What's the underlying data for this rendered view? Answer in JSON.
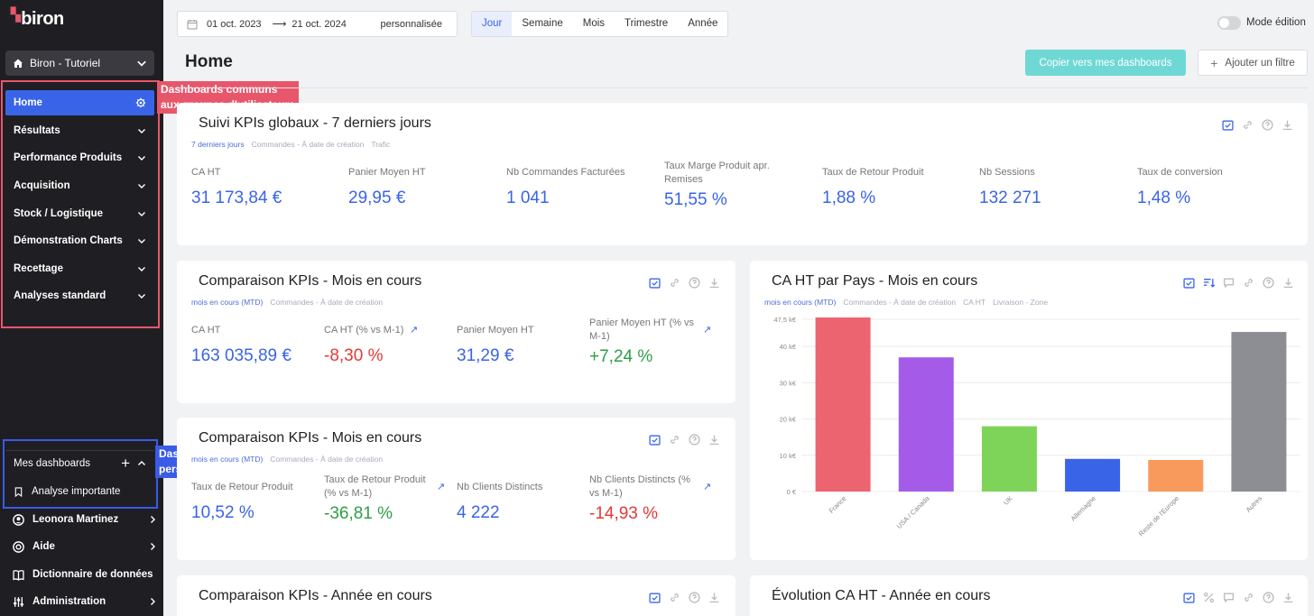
{
  "sidebar": {
    "logo": "biron",
    "workspace": "Biron - Tutoriel",
    "items": [
      {
        "label": "Home",
        "active": true
      },
      {
        "label": "Résultats"
      },
      {
        "label": "Performance Produits"
      },
      {
        "label": "Acquisition"
      },
      {
        "label": "Stock / Logistique"
      },
      {
        "label": "Démonstration Charts"
      },
      {
        "label": "Recettage"
      },
      {
        "label": "Analyses standard"
      }
    ],
    "my_dashboards": "Mes dashboards",
    "my_dashboard_items": [
      "Analyse importante"
    ],
    "bottom": [
      {
        "label": "Leonora Martinez",
        "icon": "user-icon"
      },
      {
        "label": "Aide",
        "icon": "help-icon"
      },
      {
        "label": "Dictionnaire de données",
        "icon": "book-icon"
      },
      {
        "label": "Administration",
        "icon": "sliders-icon"
      }
    ]
  },
  "annotations": {
    "common": [
      "Dashboards communs",
      "aux groupes d'utilisateurs"
    ],
    "personal": [
      "Dashboards",
      "personnels"
    ],
    "common_color": "#e8566b",
    "personal_color": "#3a5ae8"
  },
  "topbar": {
    "date_start": "01 oct. 2023",
    "date_end": "21 oct. 2024",
    "date_mode": "personnalisée",
    "granularities": [
      "Jour",
      "Semaine",
      "Mois",
      "Trimestre",
      "Année"
    ],
    "selected_granularity": "Jour",
    "edit_mode_label": "Mode édition",
    "edit_mode_on": false
  },
  "header": {
    "title": "Home",
    "copy_button": "Copier vers mes dashboards",
    "filter_button": "Ajouter un filtre"
  },
  "cards": {
    "weekly": {
      "title": "Suivi KPIs globaux - 7 derniers jours",
      "tags": [
        "7 derniers jours",
        "Commandes - À date de création",
        "Trafic"
      ],
      "kpis": [
        {
          "label": "CA HT",
          "value": "31 173,84 €"
        },
        {
          "label": "Panier Moyen HT",
          "value": "29,95 €"
        },
        {
          "label": "Nb Commandes Facturées",
          "value": "1 041"
        },
        {
          "label": "Taux Marge Produit apr. Remises",
          "value": "51,55 %"
        },
        {
          "label": "Taux de Retour Produit",
          "value": "1,88 %"
        },
        {
          "label": "Nb Sessions",
          "value": "132 271"
        },
        {
          "label": "Taux de conversion",
          "value": "1,48 %"
        }
      ]
    },
    "month1": {
      "title": "Comparaison KPIs - Mois en cours",
      "tags": [
        "mois en cours (MTD)",
        "Commandes - À date de création"
      ],
      "kpis": [
        {
          "label": "CA HT",
          "value": "163 035,89 €"
        },
        {
          "label": "CA HT (% vs M-1)",
          "value": "-8,30 %"
        },
        {
          "label": "Panier Moyen HT",
          "value": "31,29 €"
        },
        {
          "label": "Panier Moyen HT (% vs M-1)",
          "value": "+7,24 %"
        }
      ]
    },
    "month2": {
      "title": "Comparaison KPIs - Mois en cours",
      "tags": [
        "mois en cours (MTD)",
        "Commandes - À date de création"
      ],
      "kpis": [
        {
          "label": "Taux de Retour Produit",
          "value": "10,52 %"
        },
        {
          "label": "Taux de Retour Produit (% vs M-1)",
          "value": "-36,81 %"
        },
        {
          "label": "Nb Clients Distincts",
          "value": "4 222"
        },
        {
          "label": "Nb Clients Distincts (% vs M-1)",
          "value": "-14,93 %"
        }
      ]
    },
    "year": {
      "title": "Comparaison KPIs - Année en cours"
    },
    "pays": {
      "title": "CA HT par Pays - Mois en cours",
      "tags": [
        "mois en cours (MTD)",
        "Commandes - À date de création",
        "CA HT",
        "Livraison - Zone"
      ]
    },
    "evolution": {
      "title": "Évolution CA HT - Année en cours"
    }
  },
  "chart_data": {
    "type": "bar",
    "categories": [
      "France",
      "USA / Canada",
      "UK",
      "Allemagne",
      "Reste de l'Europe",
      "Autres"
    ],
    "values": [
      48000,
      37000,
      18000,
      9000,
      8700,
      44000
    ],
    "colors": [
      "#ec6470",
      "#a45ce8",
      "#7ed459",
      "#3a64e8",
      "#f99a5d",
      "#8d8e94"
    ],
    "ylim": [
      0,
      47500
    ],
    "ticks": [
      0,
      10000,
      20000,
      30000,
      40000,
      47500
    ],
    "tick_labels": [
      "0 €",
      "10 k€",
      "20 k€",
      "30 k€",
      "40 k€",
      "47,5 k€"
    ],
    "grid": true
  }
}
